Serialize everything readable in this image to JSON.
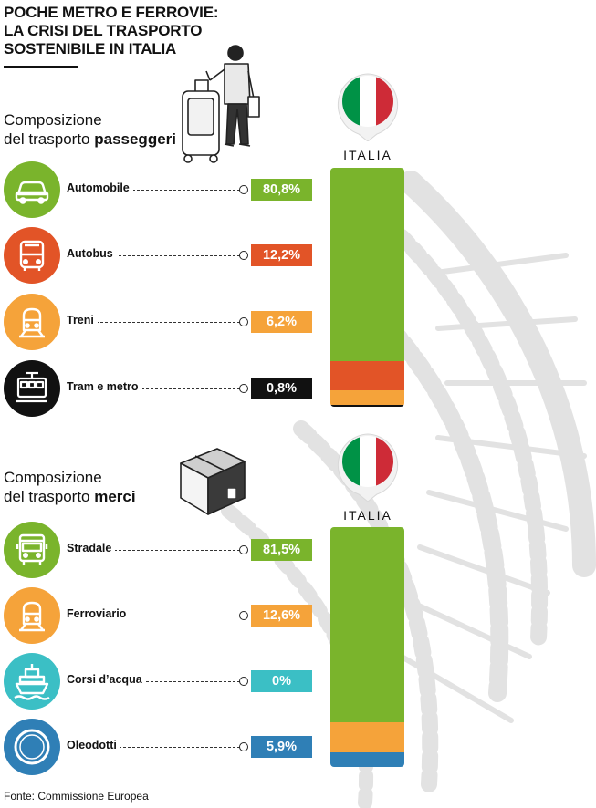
{
  "title": {
    "lines": [
      "POCHE METRO E FERROVIE:",
      "LA CRISI DEL TRASPORTO",
      "SOSTENIBILE IN ITALIA"
    ]
  },
  "source": "Fonte: Commissione Europea",
  "colors": {
    "green": "#7ab42c",
    "red": "#e25427",
    "orange": "#f5a33a",
    "black": "#111111",
    "teal": "#3bbfc5",
    "blue": "#2f7fb6",
    "flag_green": "#009246",
    "flag_red": "#ce2b37"
  },
  "passengers": {
    "title_prefix": "Composizione",
    "title_middle": "del trasporto ",
    "title_bold": "passeggeri",
    "country_label": "ITALIA",
    "items": [
      {
        "label": "Automobile",
        "value_label": "80,8%",
        "icon": "car-icon",
        "color": "#7ab42c"
      },
      {
        "label": "Autobus",
        "value_label": "12,2%",
        "icon": "bus-icon",
        "color": "#e25427"
      },
      {
        "label": "Treni",
        "value_label": "6,2%",
        "icon": "train-icon",
        "color": "#f5a33a"
      },
      {
        "label": "Tram e metro",
        "value_label": "0,8%",
        "icon": "tram-icon",
        "color": "#111111"
      }
    ]
  },
  "freight": {
    "title_prefix": "Composizione",
    "title_middle": "del trasporto ",
    "title_bold": "merci",
    "country_label": "ITALIA",
    "items": [
      {
        "label": "Stradale",
        "value_label": "81,5%",
        "icon": "truck-icon",
        "color": "#7ab42c"
      },
      {
        "label": "Ferroviario",
        "value_label": "12,6%",
        "icon": "train-icon",
        "color": "#f5a33a"
      },
      {
        "label": "Corsi d’acqua",
        "value_label": "0%",
        "icon": "ship-icon",
        "color": "#3bbfc5"
      },
      {
        "label": "Oleodotti",
        "value_label": "5,9%",
        "icon": "pipeline-icon",
        "color": "#2f7fb6"
      }
    ]
  },
  "chart_data": [
    {
      "type": "bar",
      "stacked": true,
      "categories": [
        "ITALIA"
      ],
      "series": [
        {
          "name": "Automobile",
          "values": [
            80.8
          ]
        },
        {
          "name": "Autobus",
          "values": [
            12.2
          ]
        },
        {
          "name": "Treni",
          "values": [
            6.2
          ]
        },
        {
          "name": "Tram e metro",
          "values": [
            0.8
          ]
        }
      ],
      "title": "Composizione del trasporto passeggeri",
      "ylim": [
        0,
        100
      ]
    },
    {
      "type": "bar",
      "stacked": true,
      "categories": [
        "ITALIA"
      ],
      "series": [
        {
          "name": "Stradale",
          "values": [
            81.5
          ]
        },
        {
          "name": "Ferroviario",
          "values": [
            12.6
          ]
        },
        {
          "name": "Corsi d’acqua",
          "values": [
            0
          ]
        },
        {
          "name": "Oleodotti",
          "values": [
            5.9
          ]
        }
      ],
      "title": "Composizione del trasporto merci",
      "ylim": [
        0,
        100
      ]
    }
  ]
}
